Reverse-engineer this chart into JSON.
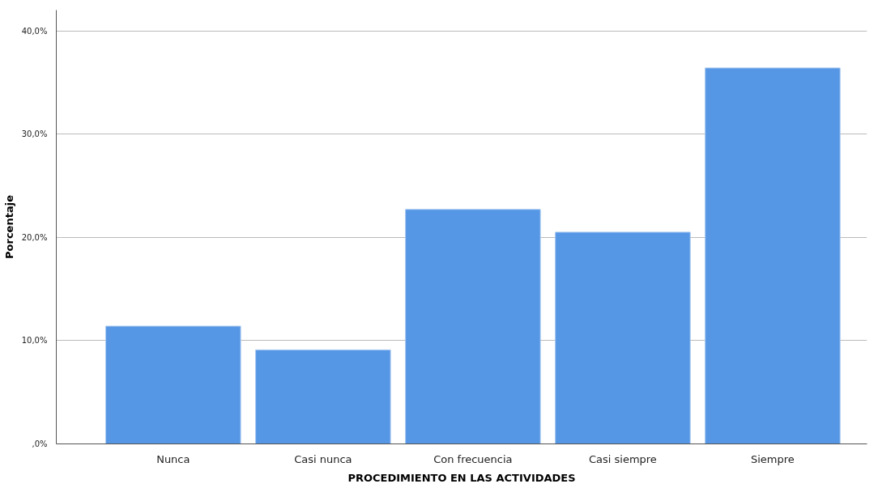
{
  "chart_data": {
    "type": "bar",
    "xlabel": "PROCEDIMIENTO EN LAS ACTIVIDADES",
    "ylabel": "Porcentaje",
    "categories": [
      "Nunca",
      "Casi nunca",
      "Con frecuencia",
      "Casi siempre",
      "Siempre"
    ],
    "values": [
      11.4,
      9.1,
      22.7,
      20.5,
      36.4
    ],
    "color": "#5596e5",
    "ylim": [
      0,
      42
    ],
    "yticks": [
      {
        "value": 0,
        "label": ",0%"
      },
      {
        "value": 10,
        "label": "10,0%"
      },
      {
        "value": 20,
        "label": "20,0%"
      },
      {
        "value": 30,
        "label": "30,0%"
      },
      {
        "value": 40,
        "label": "40,0%"
      }
    ],
    "grid": "y"
  }
}
